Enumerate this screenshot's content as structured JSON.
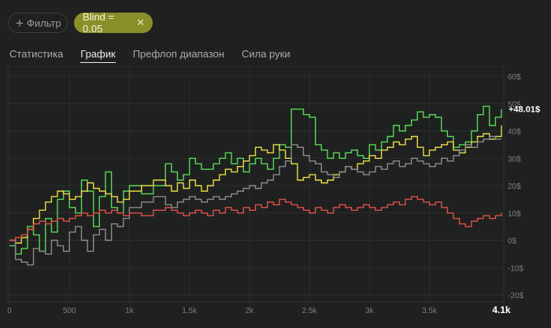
{
  "filter": {
    "add_label": "Фильтр",
    "plus_icon": "plus-icon"
  },
  "chip": {
    "label": "Blind = 0.05",
    "close_icon": "close-icon"
  },
  "tabs": [
    {
      "label": "Статистика",
      "active": false
    },
    {
      "label": "График",
      "active": true
    },
    {
      "label": "Префлоп диапазон",
      "active": false
    },
    {
      "label": "Сила руки",
      "active": false
    }
  ],
  "chart_data": {
    "type": "line",
    "xlim": [
      0,
      4100
    ],
    "ylim": [
      -21,
      63
    ],
    "x_ticks": [
      "0",
      "500",
      "1k",
      "1.5k",
      "2k",
      "2.5k",
      "3k",
      "3.5k",
      "4.1k"
    ],
    "x_tick_values": [
      0,
      500,
      1000,
      1500,
      2000,
      2500,
      3000,
      3500,
      4100
    ],
    "y_ticks": [
      "60$",
      "50$",
      "40$",
      "30$",
      "20$",
      "10$",
      "0$",
      "-10$",
      "-20$"
    ],
    "y_tick_values": [
      60,
      50,
      40,
      30,
      20,
      10,
      0,
      -10,
      -20
    ],
    "end_label": "+48.01$",
    "grid": true,
    "series": [
      {
        "color": "#57d957",
        "x": [
          0,
          50,
          100,
          150,
          200,
          250,
          300,
          350,
          400,
          450,
          500,
          550,
          600,
          650,
          700,
          750,
          800,
          850,
          900,
          950,
          1000,
          1100,
          1200,
          1300,
          1350,
          1400,
          1450,
          1500,
          1550,
          1600,
          1650,
          1700,
          1750,
          1800,
          1850,
          1900,
          1950,
          2000,
          2050,
          2100,
          2150,
          2200,
          2250,
          2300,
          2350,
          2400,
          2450,
          2500,
          2550,
          2600,
          2650,
          2700,
          2750,
          2800,
          2850,
          2900,
          2950,
          3000,
          3050,
          3100,
          3150,
          3200,
          3250,
          3300,
          3350,
          3400,
          3450,
          3500,
          3550,
          3600,
          3650,
          3700,
          3750,
          3800,
          3850,
          3900,
          3950,
          4000,
          4050,
          4100
        ],
        "values": [
          -2,
          -5,
          -3,
          5,
          2,
          -4,
          8,
          3,
          15,
          18,
          12,
          10,
          22,
          18,
          5,
          16,
          25,
          12,
          10,
          18,
          20,
          17,
          20,
          28,
          25,
          22,
          24,
          30,
          28,
          26,
          26,
          28,
          30,
          32,
          28,
          30,
          25,
          28,
          30,
          28,
          26,
          30,
          35,
          34,
          48,
          48,
          46,
          45,
          35,
          33,
          30,
          32,
          30,
          32,
          33,
          31,
          30,
          35,
          33,
          36,
          38,
          42,
          40,
          42,
          44,
          47,
          45,
          46,
          45,
          40,
          38,
          34,
          35,
          36,
          40,
          46,
          49,
          42,
          45,
          48.01
        ]
      },
      {
        "color": "#e6da47",
        "x": [
          0,
          50,
          100,
          150,
          200,
          250,
          300,
          350,
          400,
          450,
          500,
          550,
          600,
          650,
          700,
          750,
          800,
          850,
          900,
          950,
          1000,
          1100,
          1200,
          1300,
          1350,
          1400,
          1450,
          1500,
          1550,
          1600,
          1650,
          1700,
          1750,
          1800,
          1850,
          1900,
          1950,
          2000,
          2050,
          2100,
          2150,
          2200,
          2250,
          2300,
          2350,
          2400,
          2450,
          2500,
          2550,
          2600,
          2650,
          2700,
          2750,
          2800,
          2850,
          2900,
          2950,
          3000,
          3050,
          3100,
          3150,
          3200,
          3250,
          3300,
          3350,
          3400,
          3450,
          3500,
          3550,
          3600,
          3650,
          3700,
          3750,
          3800,
          3850,
          3900,
          3950,
          4000,
          4050,
          4100
        ],
        "values": [
          0,
          -1,
          1,
          4,
          8,
          11,
          14,
          16,
          18,
          17,
          15,
          16,
          18,
          21,
          19,
          18,
          17,
          16,
          14,
          15,
          18,
          20,
          22,
          20,
          18,
          21,
          19,
          22,
          20,
          18,
          20,
          22,
          24,
          26,
          25,
          27,
          29,
          31,
          34,
          33,
          32,
          35,
          33,
          30,
          28,
          22,
          23,
          24,
          22,
          21,
          22,
          24,
          25,
          27,
          26,
          28,
          29,
          31,
          30,
          33,
          34,
          36,
          35,
          37,
          38,
          34,
          31,
          33,
          34,
          35,
          36,
          33,
          32,
          34,
          36,
          38,
          39,
          37,
          38,
          42
        ]
      },
      {
        "color": "#8a8c89",
        "x": [
          0,
          50,
          100,
          150,
          200,
          250,
          300,
          350,
          400,
          450,
          500,
          550,
          600,
          650,
          700,
          750,
          800,
          850,
          900,
          950,
          1000,
          1100,
          1200,
          1300,
          1350,
          1400,
          1450,
          1500,
          1550,
          1600,
          1650,
          1700,
          1750,
          1800,
          1850,
          1900,
          1950,
          2000,
          2050,
          2100,
          2150,
          2200,
          2250,
          2300,
          2350,
          2400,
          2450,
          2500,
          2550,
          2600,
          2650,
          2700,
          2750,
          2800,
          2850,
          2900,
          2950,
          3000,
          3050,
          3100,
          3150,
          3200,
          3250,
          3300,
          3350,
          3400,
          3450,
          3500,
          3550,
          3600,
          3650,
          3700,
          3750,
          3800,
          3850,
          3900,
          3950,
          4000,
          4050,
          4100
        ],
        "values": [
          0,
          -7,
          -8,
          -9,
          -3,
          -4,
          -5,
          0,
          -2,
          -4,
          3,
          5,
          0,
          -4,
          2,
          4,
          0,
          6,
          5,
          8,
          12,
          14,
          16,
          13,
          12,
          14,
          15,
          16,
          15,
          14,
          15,
          16,
          15,
          16,
          17,
          18,
          19,
          20,
          19,
          21,
          22,
          24,
          27,
          29,
          35,
          34,
          31,
          29,
          28,
          25,
          24,
          23,
          25,
          27,
          26,
          25,
          24,
          25,
          27,
          26,
          28,
          29,
          27,
          28,
          30,
          29,
          28,
          27,
          28,
          30,
          29,
          31,
          33,
          35,
          34,
          36,
          37,
          38,
          37,
          37
        ]
      },
      {
        "color": "#e0504a",
        "x": [
          0,
          50,
          100,
          150,
          200,
          250,
          300,
          350,
          400,
          450,
          500,
          550,
          600,
          650,
          700,
          750,
          800,
          850,
          900,
          950,
          1000,
          1100,
          1200,
          1300,
          1350,
          1400,
          1450,
          1500,
          1550,
          1600,
          1650,
          1700,
          1750,
          1800,
          1850,
          1900,
          1950,
          2000,
          2050,
          2100,
          2150,
          2200,
          2250,
          2300,
          2350,
          2400,
          2450,
          2500,
          2550,
          2600,
          2650,
          2700,
          2750,
          2800,
          2850,
          2900,
          2950,
          3000,
          3050,
          3100,
          3150,
          3200,
          3250,
          3300,
          3350,
          3400,
          3450,
          3500,
          3550,
          3600,
          3650,
          3700,
          3750,
          3800,
          3850,
          3900,
          3950,
          4000,
          4050,
          4100
        ],
        "values": [
          0,
          1,
          2,
          4,
          6,
          7,
          6,
          7,
          8,
          7,
          8,
          9,
          10,
          9,
          10,
          11,
          10,
          11,
          10,
          9,
          10,
          9,
          11,
          12,
          11,
          10,
          9,
          10,
          11,
          10,
          9,
          11,
          10,
          12,
          11,
          10,
          12,
          11,
          13,
          12,
          14,
          13,
          15,
          14,
          13,
          12,
          11,
          10,
          12,
          11,
          10,
          12,
          13,
          12,
          11,
          12,
          13,
          12,
          11,
          12,
          13,
          14,
          13,
          15,
          16,
          15,
          14,
          13,
          14,
          12,
          10,
          8,
          6,
          5,
          7,
          8,
          9,
          8,
          9,
          10
        ]
      }
    ]
  }
}
